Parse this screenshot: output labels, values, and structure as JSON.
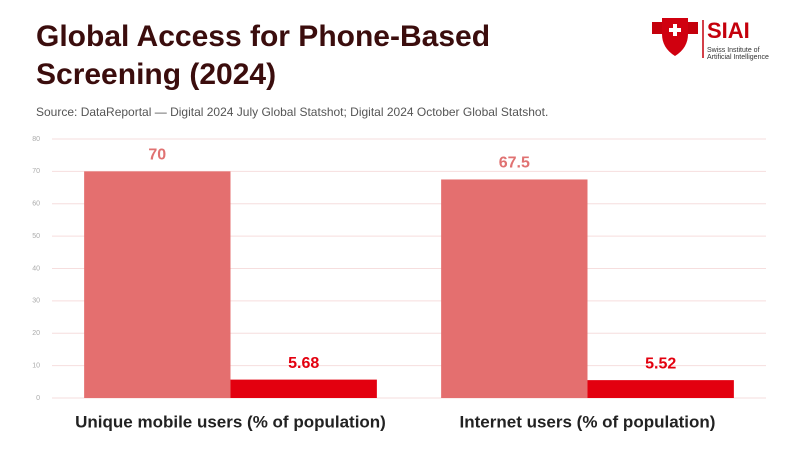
{
  "chart_data": {
    "type": "bar",
    "title": "Global Access for Phone-Based Screening (2024)",
    "subtitle": "Source: DataReportal — Digital 2024 July Global Statshot; Digital 2024 October Global Statshot.",
    "categories": [
      "Unique mobile users (% of population)",
      "Internet users (% of population)"
    ],
    "series": [
      {
        "color": "#e46f6f",
        "label_color": "#e07272",
        "values": [
          70,
          67.5
        ]
      },
      {
        "color": "#e3000f",
        "label_color": "#e3000f",
        "values": [
          5.68,
          5.52
        ]
      }
    ],
    "ylim": [
      0,
      80
    ],
    "yticks": [
      0,
      10,
      20,
      30,
      40,
      50,
      60,
      70,
      80
    ],
    "grid": true
  },
  "logo": {
    "name": "SIAI",
    "lines": [
      "Swiss Institute of",
      "Artificial Intelligence"
    ]
  }
}
